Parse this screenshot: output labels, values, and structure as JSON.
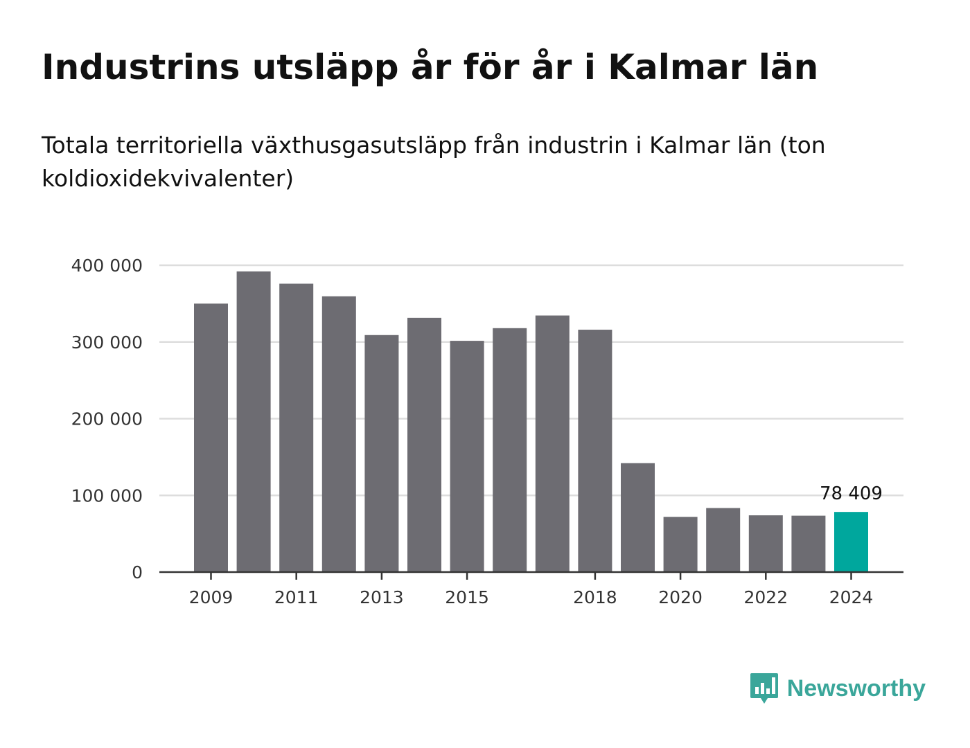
{
  "header": {
    "title": "Industrins utsläpp år för år i Kalmar län",
    "subtitle": "Totala territoriella växthusgasutsläpp från industrin i Kalmar län (ton koldioxidekvivalenter)"
  },
  "brand": {
    "name": "Newsworthy",
    "icon": "bar-chart-speech-bubble-icon",
    "color": "#3aa69a"
  },
  "chart_data": {
    "type": "bar",
    "categories": [
      "2009",
      "2010",
      "2011",
      "2012",
      "2013",
      "2014",
      "2015",
      "2016",
      "2017",
      "2018",
      "2019",
      "2020",
      "2021",
      "2022",
      "2023",
      "2024"
    ],
    "values": [
      350000,
      392000,
      376000,
      359500,
      309000,
      331500,
      301500,
      318000,
      334500,
      316000,
      142000,
      72000,
      83500,
      74000,
      73500,
      78409
    ],
    "x_tick_labels": [
      "2009",
      "2011",
      "2013",
      "2015",
      "2018",
      "2020",
      "2022",
      "2024"
    ],
    "y_ticks": [
      0,
      100000,
      200000,
      300000,
      400000
    ],
    "y_tick_labels": [
      "0",
      "100 000",
      "200 000",
      "300 000",
      "400 000"
    ],
    "ylim": [
      0,
      400000
    ],
    "grid": true,
    "colors": {
      "default": "#6d6c72",
      "highlight": "#00a79d"
    },
    "highlight_index": 15,
    "annotations": [
      {
        "category": "2024",
        "text": "78 409"
      }
    ]
  }
}
